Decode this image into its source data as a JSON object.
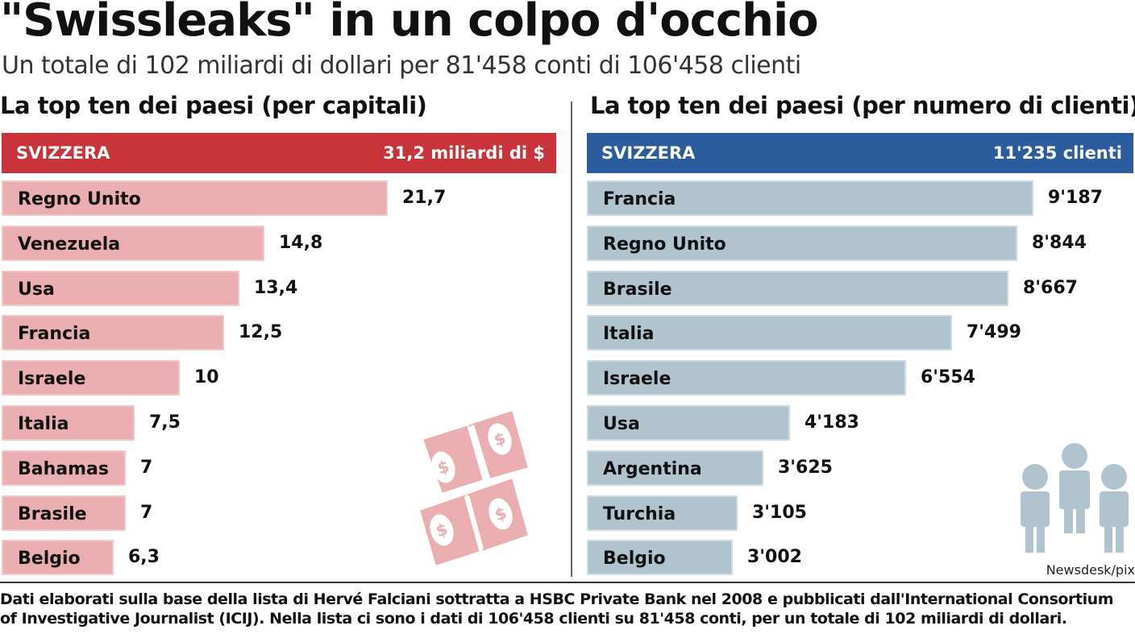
{
  "title": "\"Swissleaks\" in un colpo d'occhio",
  "subtitle": "Un totale di 102 miliardi di dollari per 81'458 conti di 106'458 clienti",
  "credit": "Newsdesk/pix",
  "footnote": "Dati elaborati sulla base della lista di Hervé Falciani sottratta a HSBC Private Bank nel 2008 e pubblicati dall'International Consortium of Investigative Journalist (ICIJ). Nella lista ci sono i dati di 106'458 clienti su 81'458 conti, per un totale di 102 miliardi di dollari.",
  "colors": {
    "capital_top": "#c8343a",
    "capital_bar": "#eaaeb1",
    "clients_top": "#2b5c9e",
    "clients_bar": "#b0c4cf"
  },
  "icons": [
    "dollar-bills-icon",
    "people-icon"
  ],
  "chart_data": [
    {
      "type": "bar",
      "orientation": "horizontal",
      "title": "La top ten dei paesi (per capitali)",
      "categories": [
        "SVIZZERA",
        "Regno Unito",
        "Venezuela",
        "Usa",
        "Francia",
        "Israele",
        "Italia",
        "Bahamas",
        "Brasile",
        "Belgio"
      ],
      "values": [
        31.2,
        21.7,
        14.8,
        13.4,
        12.5,
        10,
        7.5,
        7,
        7,
        6.3
      ],
      "value_labels": [
        "31,2 miliardi di $",
        "21,7",
        "14,8",
        "13,4",
        "12,5",
        "10",
        "7,5",
        "7",
        "7",
        "6,3"
      ],
      "xlim": [
        0,
        31.2
      ]
    },
    {
      "type": "bar",
      "orientation": "horizontal",
      "title": "La top ten dei paesi (per numero di clienti)",
      "categories": [
        "SVIZZERA",
        "Francia",
        "Regno Unito",
        "Brasile",
        "Italia",
        "Israele",
        "Usa",
        "Argentina",
        "Turchia",
        "Belgio"
      ],
      "values": [
        11235,
        9187,
        8844,
        8667,
        7499,
        6554,
        4183,
        3625,
        3105,
        3002
      ],
      "value_labels": [
        "11'235 clienti",
        "9'187",
        "8'844",
        "8'667",
        "7'499",
        "6'554",
        "4'183",
        "3'625",
        "3'105",
        "3'002"
      ],
      "xlim": [
        0,
        11235
      ]
    }
  ]
}
